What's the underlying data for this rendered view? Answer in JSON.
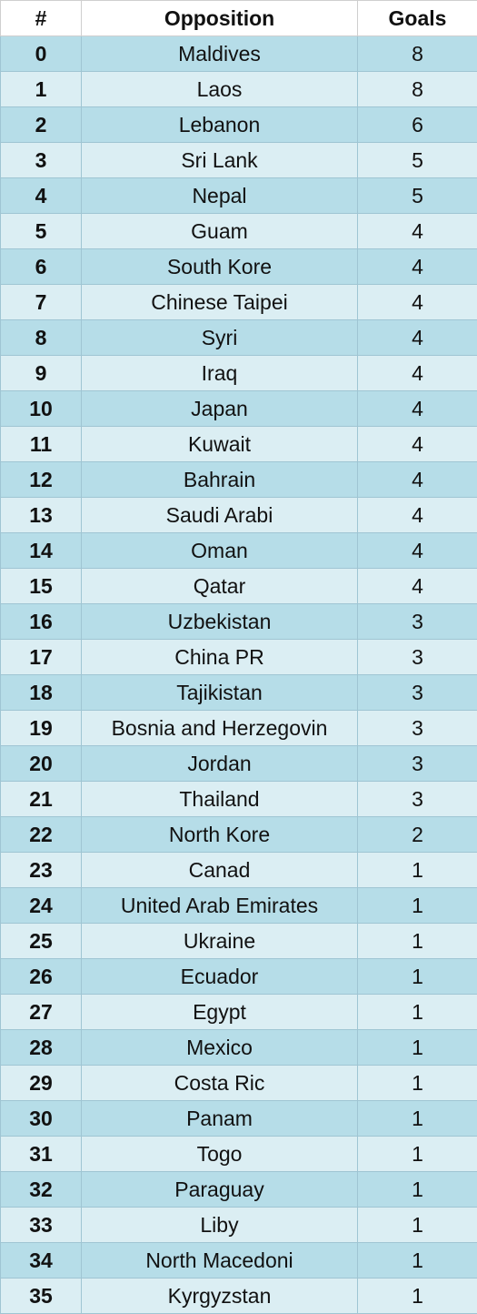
{
  "table": {
    "headers": [
      "#",
      "Opposition",
      "Goals"
    ],
    "rows": [
      [
        "0",
        "Maldives",
        "8"
      ],
      [
        "1",
        "Laos",
        "8"
      ],
      [
        "2",
        "Lebanon",
        "6"
      ],
      [
        "3",
        "Sri Lank",
        "5"
      ],
      [
        "4",
        "Nepal",
        "5"
      ],
      [
        "5",
        "Guam",
        "4"
      ],
      [
        "6",
        "South Kore",
        "4"
      ],
      [
        "7",
        "Chinese Taipei",
        "4"
      ],
      [
        "8",
        "Syri",
        "4"
      ],
      [
        "9",
        "Iraq",
        "4"
      ],
      [
        "10",
        "Japan",
        "4"
      ],
      [
        "11",
        "Kuwait",
        "4"
      ],
      [
        "12",
        "Bahrain",
        "4"
      ],
      [
        "13",
        "Saudi Arabi",
        "4"
      ],
      [
        "14",
        "Oman",
        "4"
      ],
      [
        "15",
        "Qatar",
        "4"
      ],
      [
        "16",
        "Uzbekistan",
        "3"
      ],
      [
        "17",
        "China PR",
        "3"
      ],
      [
        "18",
        "Tajikistan",
        "3"
      ],
      [
        "19",
        "Bosnia and Herzegovin",
        "3"
      ],
      [
        "20",
        "Jordan",
        "3"
      ],
      [
        "21",
        "Thailand",
        "3"
      ],
      [
        "22",
        "North Kore",
        "2"
      ],
      [
        "23",
        "Canad",
        "1"
      ],
      [
        "24",
        "United Arab Emirates",
        "1"
      ],
      [
        "25",
        "Ukraine",
        "1"
      ],
      [
        "26",
        "Ecuador",
        "1"
      ],
      [
        "27",
        "Egypt",
        "1"
      ],
      [
        "28",
        "Mexico",
        "1"
      ],
      [
        "29",
        "Costa Ric",
        "1"
      ],
      [
        "30",
        "Panam",
        "1"
      ],
      [
        "31",
        "Togo",
        "1"
      ],
      [
        "32",
        "Paraguay",
        "1"
      ],
      [
        "33",
        "Liby",
        "1"
      ],
      [
        "34",
        "North Macedoni",
        "1"
      ],
      [
        "35",
        "Kyrgyzstan",
        "1"
      ]
    ]
  },
  "colors": {
    "row_dark": "#b6dde8",
    "row_light": "#dbeef3",
    "border": "#9fc5d3"
  }
}
